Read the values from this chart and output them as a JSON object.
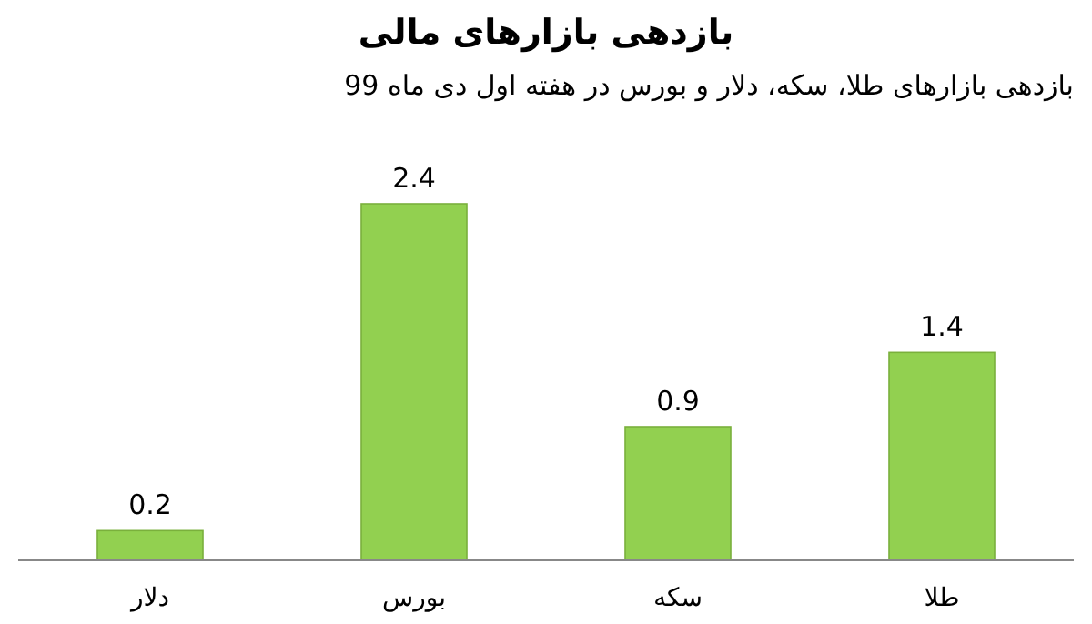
{
  "chart_data": {
    "type": "bar",
    "title": "بازدهی بازارهای مالی",
    "subtitle": "بازدهی بازارهای طلا، سکه، دلار و بورس در هفته اول دی ماه 99",
    "categories": [
      "دلار",
      "بورس",
      "سکه",
      "طلا"
    ],
    "values": [
      0.2,
      2.4,
      0.9,
      1.4
    ],
    "color": "#92d050",
    "data_labels": true
  }
}
